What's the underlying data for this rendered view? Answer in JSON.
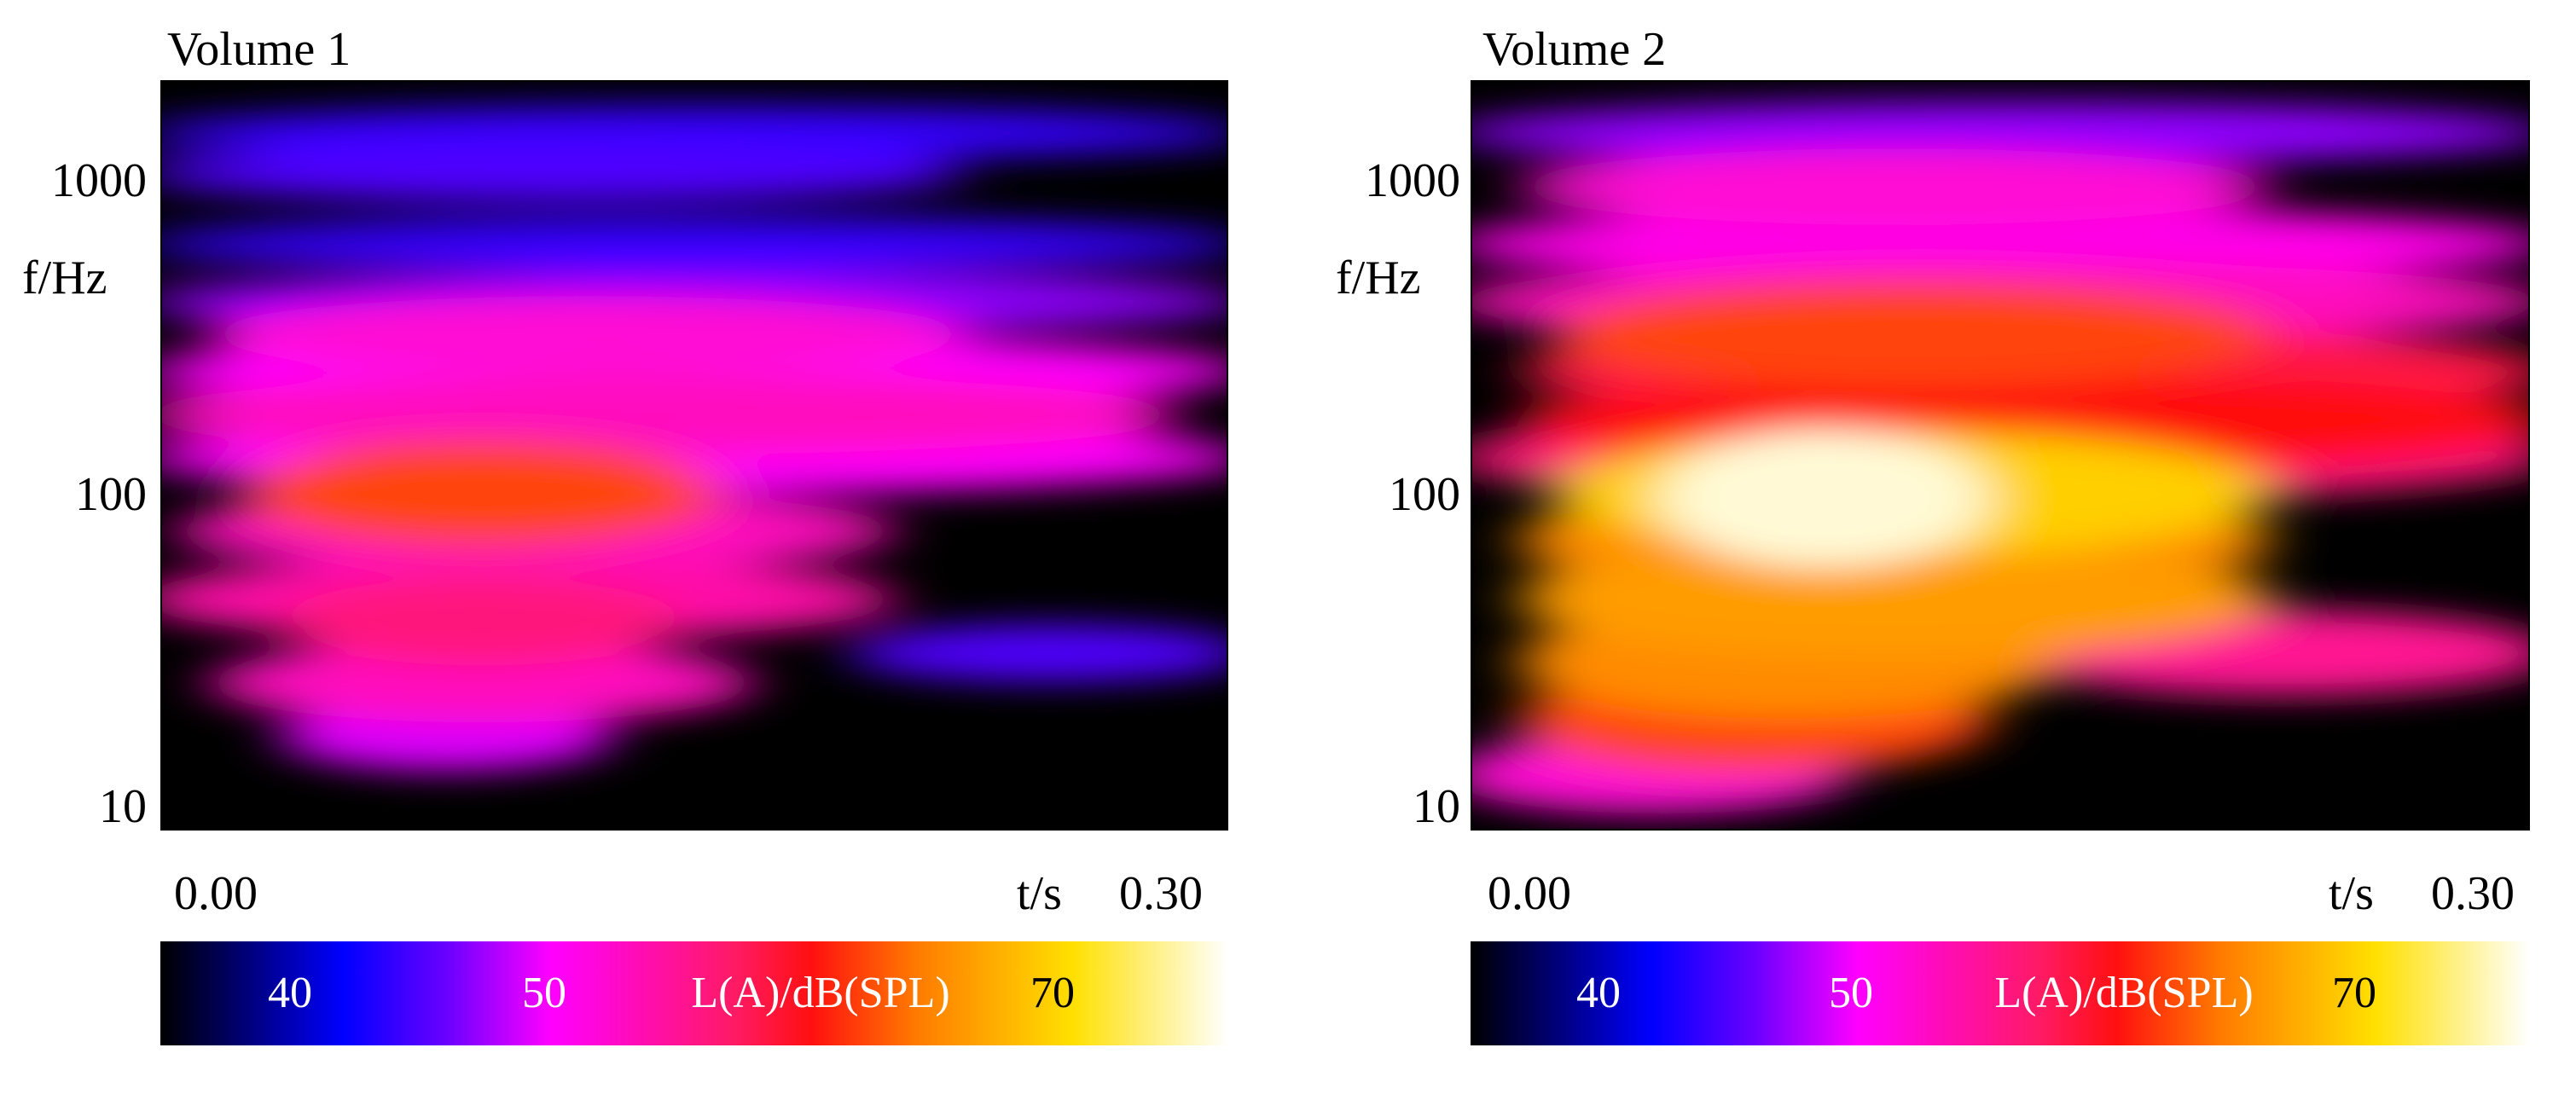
{
  "chart_data": [
    {
      "type": "heatmap",
      "title": "Volume 1",
      "xlabel": "t/s",
      "ylabel": "f/Hz",
      "xlim": [
        0.0,
        0.3
      ],
      "ylim": [
        8,
        2200
      ],
      "yscale": "log",
      "x_tick_labels": [
        "0.00",
        "0.30"
      ],
      "y_ticks": [
        {
          "value": 10,
          "label": "10"
        },
        {
          "value": 100,
          "label": "100"
        },
        {
          "value": 1000,
          "label": "1000"
        }
      ],
      "color_label": "L(A)/dB(SPL)",
      "color_ticks": [
        {
          "value": 40,
          "label": "40"
        },
        {
          "value": 50,
          "label": "50"
        },
        {
          "value": 70,
          "label": "70"
        }
      ],
      "clim": [
        35,
        76
      ],
      "hotspots": [
        {
          "t0": 0.0,
          "t1": 0.3,
          "f": 1500,
          "level": 44
        },
        {
          "t0": 0.0,
          "t1": 0.22,
          "f": 1100,
          "level": 45
        },
        {
          "t0": 0.0,
          "t1": 0.3,
          "f": 650,
          "level": 44
        },
        {
          "t0": 0.0,
          "t1": 0.3,
          "f": 420,
          "level": 47
        },
        {
          "t0": 0.02,
          "t1": 0.22,
          "f": 330,
          "level": 52
        },
        {
          "t0": 0.0,
          "t1": 0.3,
          "f": 250,
          "level": 50
        },
        {
          "t0": 0.0,
          "t1": 0.28,
          "f": 180,
          "level": 53
        },
        {
          "t0": 0.0,
          "t1": 0.3,
          "f": 130,
          "level": 50
        },
        {
          "t0": 0.03,
          "t1": 0.15,
          "f": 100,
          "level": 62
        },
        {
          "t0": 0.01,
          "t1": 0.2,
          "f": 75,
          "level": 53
        },
        {
          "t0": 0.0,
          "t1": 0.2,
          "f": 45,
          "level": 54
        },
        {
          "t0": 0.04,
          "t1": 0.14,
          "f": 38,
          "level": 56
        },
        {
          "t0": 0.02,
          "t1": 0.16,
          "f": 24,
          "level": 53
        },
        {
          "t0": 0.04,
          "t1": 0.12,
          "f": 16,
          "level": 49
        },
        {
          "t0": 0.2,
          "t1": 0.3,
          "f": 30,
          "level": 45
        }
      ]
    },
    {
      "type": "heatmap",
      "title": "Volume 2",
      "xlabel": "t/s",
      "ylabel": "f/Hz",
      "xlim": [
        0.0,
        0.3
      ],
      "ylim": [
        8,
        2200
      ],
      "yscale": "log",
      "x_tick_labels": [
        "0.00",
        "0.30"
      ],
      "y_ticks": [
        {
          "value": 10,
          "label": "10"
        },
        {
          "value": 100,
          "label": "100"
        },
        {
          "value": 1000,
          "label": "1000"
        }
      ],
      "color_label": "L(A)/dB(SPL)",
      "color_ticks": [
        {
          "value": 40,
          "label": "40"
        },
        {
          "value": 50,
          "label": "50"
        },
        {
          "value": 70,
          "label": "70"
        }
      ],
      "clim": [
        35,
        76
      ],
      "hotspots": [
        {
          "t0": 0.0,
          "t1": 0.3,
          "f": 1500,
          "level": 47
        },
        {
          "t0": 0.02,
          "t1": 0.22,
          "f": 1000,
          "level": 52
        },
        {
          "t0": 0.0,
          "t1": 0.3,
          "f": 650,
          "level": 51
        },
        {
          "t0": 0.0,
          "t1": 0.3,
          "f": 420,
          "level": 53
        },
        {
          "t0": 0.03,
          "t1": 0.22,
          "f": 330,
          "level": 62
        },
        {
          "t0": 0.02,
          "t1": 0.3,
          "f": 250,
          "level": 58
        },
        {
          "t0": 0.02,
          "t1": 0.3,
          "f": 170,
          "level": 60
        },
        {
          "t0": 0.0,
          "t1": 0.3,
          "f": 130,
          "level": 56
        },
        {
          "t0": 0.03,
          "t1": 0.22,
          "f": 100,
          "level": 69
        },
        {
          "t0": 0.06,
          "t1": 0.14,
          "f": 96,
          "level": 75
        },
        {
          "t0": 0.02,
          "t1": 0.22,
          "f": 70,
          "level": 65
        },
        {
          "t0": 0.02,
          "t1": 0.22,
          "f": 45,
          "level": 66
        },
        {
          "t0": 0.02,
          "t1": 0.16,
          "f": 28,
          "level": 65
        },
        {
          "t0": 0.02,
          "t1": 0.14,
          "f": 18,
          "level": 62
        },
        {
          "t0": 0.16,
          "t1": 0.3,
          "f": 30,
          "level": 55
        },
        {
          "t0": 0.0,
          "t1": 0.1,
          "f": 12,
          "level": 52
        }
      ]
    }
  ],
  "colormap": {
    "stops": [
      {
        "value": 35,
        "color": "#000000"
      },
      {
        "value": 42,
        "color": "#0000ff"
      },
      {
        "value": 46,
        "color": "#6a00ff"
      },
      {
        "value": 50,
        "color": "#ff00ff"
      },
      {
        "value": 57,
        "color": "#ff1a66"
      },
      {
        "value": 60,
        "color": "#ff1010"
      },
      {
        "value": 64,
        "color": "#ff7a00"
      },
      {
        "value": 70,
        "color": "#ffe000"
      },
      {
        "value": 76,
        "color": "#ffffff"
      }
    ]
  }
}
